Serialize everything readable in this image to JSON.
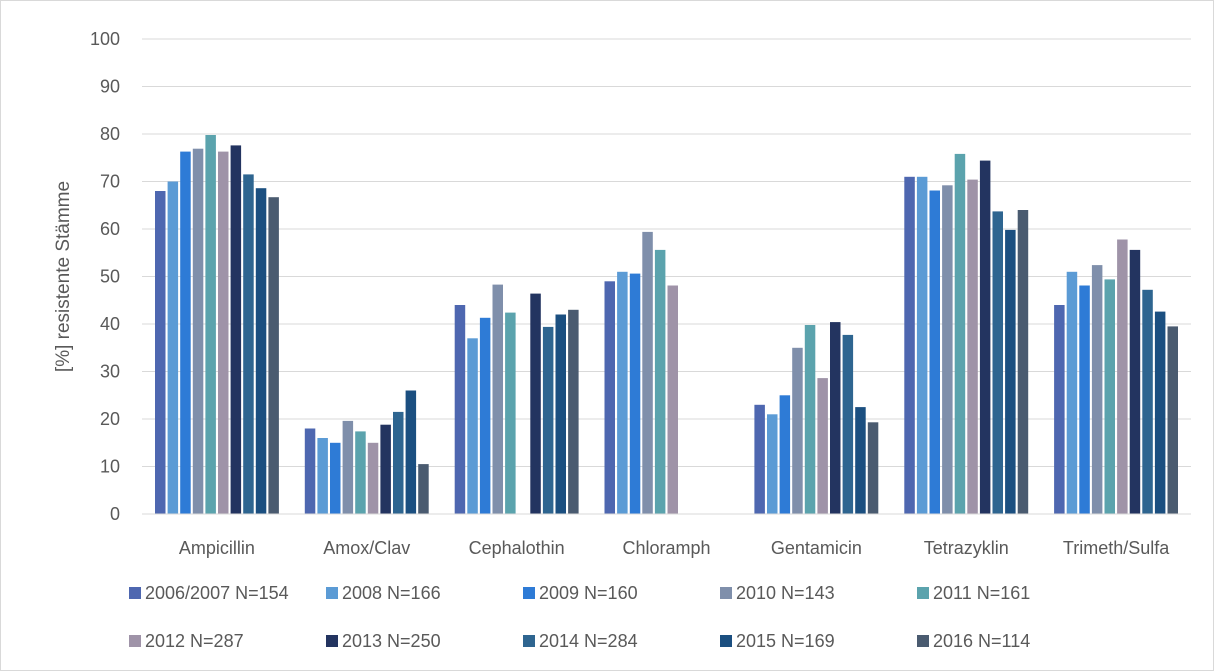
{
  "chart_data": {
    "type": "bar",
    "title": "",
    "xlabel": "",
    "ylabel": "[%] resistente Stämme",
    "ylim": [
      0,
      100
    ],
    "yticks": [
      0,
      10,
      20,
      30,
      40,
      50,
      60,
      70,
      80,
      90,
      100
    ],
    "grid": true,
    "legend_position": "bottom",
    "categories": [
      "Ampicillin",
      "Amox/Clav",
      "Cephalothin",
      "Chloramph",
      "Gentamicin",
      "Tetrazyklin",
      "Trimeth/Sulfa"
    ],
    "series": [
      {
        "name": "2006/2007 N=154",
        "color": "#4e67b0",
        "values": [
          68,
          18,
          44,
          49,
          23,
          71,
          44
        ]
      },
      {
        "name": "2008 N=166",
        "color": "#5b9bd5",
        "values": [
          70,
          16,
          37,
          51,
          21,
          71,
          51
        ]
      },
      {
        "name": "2009 N=160",
        "color": "#2e7bd6",
        "values": [
          76.3,
          15,
          41.3,
          50.6,
          25,
          68.1,
          48.1
        ]
      },
      {
        "name": "2010 N=143",
        "color": "#7f8fab",
        "values": [
          76.9,
          19.6,
          48.3,
          59.4,
          35,
          69.2,
          52.4
        ]
      },
      {
        "name": "2011 N=161",
        "color": "#5ba3ad",
        "values": [
          79.8,
          17.4,
          42.4,
          55.6,
          39.8,
          75.8,
          49.4
        ]
      },
      {
        "name": "2012 N=287",
        "color": "#9f93a8",
        "values": [
          76.3,
          15,
          null,
          48.1,
          28.6,
          70.4,
          57.8
        ]
      },
      {
        "name": "2013 N=250",
        "color": "#233460",
        "values": [
          77.6,
          18.8,
          46.4,
          null,
          40.4,
          74.4,
          55.6
        ]
      },
      {
        "name": "2014 N=284",
        "color": "#2e6590",
        "values": [
          71.5,
          21.5,
          39.4,
          null,
          37.7,
          63.7,
          47.2
        ]
      },
      {
        "name": "2015 N=169",
        "color": "#1b4f80",
        "values": [
          68.6,
          26,
          42,
          null,
          22.5,
          59.8,
          42.6
        ]
      },
      {
        "name": "2016 N=114",
        "color": "#4a5b70",
        "values": [
          66.7,
          10.5,
          43,
          null,
          19.3,
          64,
          39.5
        ]
      }
    ]
  }
}
